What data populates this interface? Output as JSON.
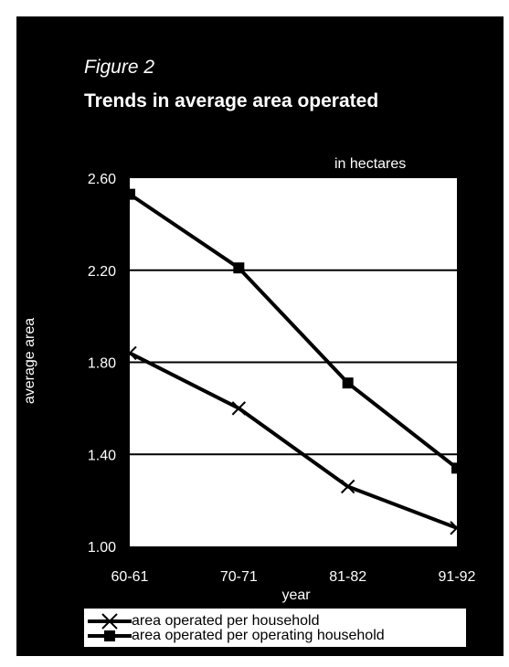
{
  "figure_label": "Figure 2",
  "chart_data": {
    "type": "line",
    "title": "Trends in average area operated",
    "unit_note": "in  hectares",
    "xlabel": "year",
    "ylabel": "average area",
    "categories": [
      "60-61",
      "70-71",
      "81-82",
      "91-92"
    ],
    "ylim": [
      1.0,
      2.6
    ],
    "yticks": [
      "2.60",
      "2.20",
      "1.80",
      "1.40",
      "1.00"
    ],
    "ytick_values": [
      2.6,
      2.2,
      1.8,
      1.4,
      1.0
    ],
    "grid": true,
    "series": [
      {
        "name": "area operated per household",
        "marker": "x",
        "values": [
          1.84,
          1.6,
          1.26,
          1.08
        ]
      },
      {
        "name": "area operated per operating household",
        "marker": "square",
        "values": [
          2.53,
          2.21,
          1.71,
          1.34
        ]
      }
    ],
    "legend_position": "bottom",
    "colors": {
      "background": "#000000",
      "plot": "#ffffff",
      "line": "#000000"
    }
  }
}
